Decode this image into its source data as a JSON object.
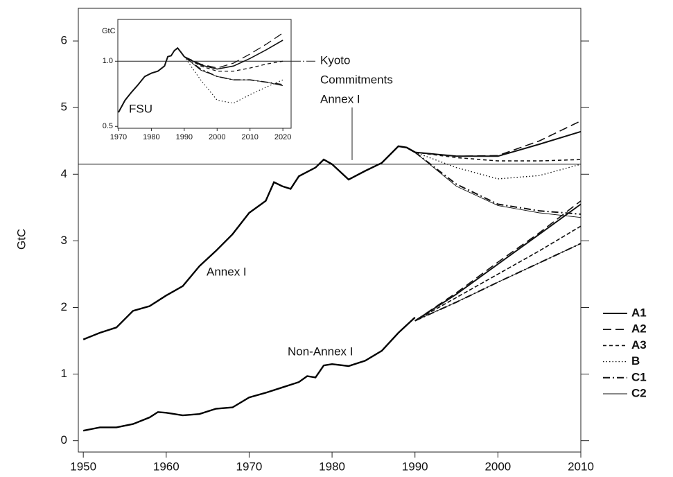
{
  "chart_data": {
    "type": "line",
    "y_label": "GtC",
    "xlim": [
      1949.4,
      2010
    ],
    "xticks": [
      1950,
      1960,
      1970,
      1980,
      1990,
      2000,
      2010
    ],
    "ylim": [
      -0.17,
      6.49
    ],
    "yticks": [
      0,
      1,
      2,
      3,
      4,
      5,
      6
    ],
    "kyoto_level": 4.15,
    "annotation": [
      "Kyoto",
      "Commitments",
      "Annex I"
    ],
    "series": [
      {
        "name": "Annex I",
        "color": "#000000",
        "x": [
          1950,
          1952,
          1954,
          1956,
          1958,
          1960,
          1962,
          1964,
          1966,
          1968,
          1970,
          1972,
          1973,
          1974,
          1975,
          1976,
          1978,
          1979,
          1980,
          1982,
          1984,
          1986,
          1988,
          1989,
          1990
        ],
        "values": [
          1.52,
          1.62,
          1.7,
          1.95,
          2.02,
          2.18,
          2.32,
          2.62,
          2.85,
          3.1,
          3.42,
          3.6,
          3.88,
          3.82,
          3.78,
          3.97,
          4.1,
          4.22,
          4.15,
          3.92,
          4.05,
          4.17,
          4.42,
          4.4,
          4.33
        ]
      },
      {
        "name": "Non-Annex I",
        "color": "#000000",
        "x": [
          1950,
          1952,
          1954,
          1956,
          1958,
          1959,
          1960,
          1962,
          1964,
          1966,
          1968,
          1970,
          1972,
          1974,
          1976,
          1977,
          1978,
          1979,
          1980,
          1982,
          1984,
          1986,
          1988,
          1990
        ],
        "values": [
          0.15,
          0.2,
          0.2,
          0.25,
          0.35,
          0.43,
          0.42,
          0.38,
          0.4,
          0.48,
          0.5,
          0.65,
          0.72,
          0.8,
          0.88,
          0.97,
          0.95,
          1.13,
          1.15,
          1.12,
          1.2,
          1.35,
          1.62,
          1.85
        ]
      }
    ],
    "scenario_years": [
      1990,
      1995,
      2000,
      2005,
      2010
    ],
    "scenarios": [
      {
        "name": "A1",
        "style": "solid",
        "width": 2,
        "annex_i": [
          4.33,
          4.27,
          4.27,
          4.45,
          4.64
        ],
        "non_annex_i": [
          1.8,
          2.2,
          2.65,
          3.1,
          3.55
        ]
      },
      {
        "name": "A2",
        "style": "long-dash",
        "width": 1.6,
        "annex_i": [
          4.33,
          4.27,
          4.28,
          4.5,
          4.8
        ],
        "non_annex_i": [
          1.8,
          2.22,
          2.68,
          3.12,
          3.6
        ]
      },
      {
        "name": "A3",
        "style": "short-dash",
        "width": 1.6,
        "annex_i": [
          4.33,
          4.25,
          4.2,
          4.2,
          4.22
        ],
        "non_annex_i": [
          1.8,
          2.15,
          2.5,
          2.85,
          3.22
        ]
      },
      {
        "name": "B",
        "style": "dotted",
        "width": 1.4,
        "annex_i": [
          4.33,
          4.1,
          3.93,
          3.98,
          4.15
        ],
        "non_annex_i": [
          1.8,
          2.15,
          2.5,
          2.85,
          3.22
        ]
      },
      {
        "name": "C1",
        "style": "dash-dot",
        "width": 2,
        "annex_i": [
          4.33,
          3.85,
          3.55,
          3.45,
          3.4
        ],
        "non_annex_i": [
          1.8,
          2.08,
          2.38,
          2.67,
          2.96
        ]
      },
      {
        "name": "C2",
        "style": "solid",
        "width": 0.9,
        "annex_i": [
          4.33,
          3.82,
          3.53,
          3.42,
          3.35
        ],
        "non_annex_i": [
          1.8,
          2.08,
          2.38,
          2.67,
          2.96
        ]
      }
    ],
    "inset": {
      "type": "line",
      "label": "FSU",
      "y_label": "GtC",
      "log_y": true,
      "xlim": [
        1969.8,
        2022.5
      ],
      "xticks": [
        1970,
        1980,
        1990,
        2000,
        2010,
        2020
      ],
      "ylim": [
        0.49,
        1.56
      ],
      "yticks": [
        0.5,
        {
          "value": 1,
          "label": "1.0"
        }
      ],
      "kyoto_level": 1,
      "history_x": [
        1970,
        1972,
        1974,
        1976,
        1978,
        1980,
        1982,
        1984,
        1985,
        1986,
        1987,
        1988,
        1989,
        1990
      ],
      "history": [
        0.58,
        0.66,
        0.72,
        0.78,
        0.85,
        0.88,
        0.9,
        0.95,
        1.05,
        1.06,
        1.12,
        1.15,
        1.1,
        1.05
      ],
      "scenario_years": [
        1990,
        1995,
        2000,
        2005,
        2010,
        2015,
        2020
      ],
      "scenarios": [
        [
          1.05,
          0.96,
          0.92,
          0.95,
          1.03,
          1.13,
          1.25
        ],
        [
          1.05,
          0.97,
          0.93,
          0.98,
          1.08,
          1.2,
          1.35
        ],
        [
          1.05,
          0.95,
          0.9,
          0.9,
          0.93,
          0.97,
          1.0
        ],
        [
          1.05,
          0.82,
          0.66,
          0.64,
          0.7,
          0.76,
          0.82
        ],
        [
          1.05,
          0.92,
          0.85,
          0.82,
          0.82,
          0.8,
          0.78
        ],
        [
          1.05,
          0.91,
          0.85,
          0.82,
          0.82,
          0.8,
          0.77
        ]
      ]
    }
  }
}
